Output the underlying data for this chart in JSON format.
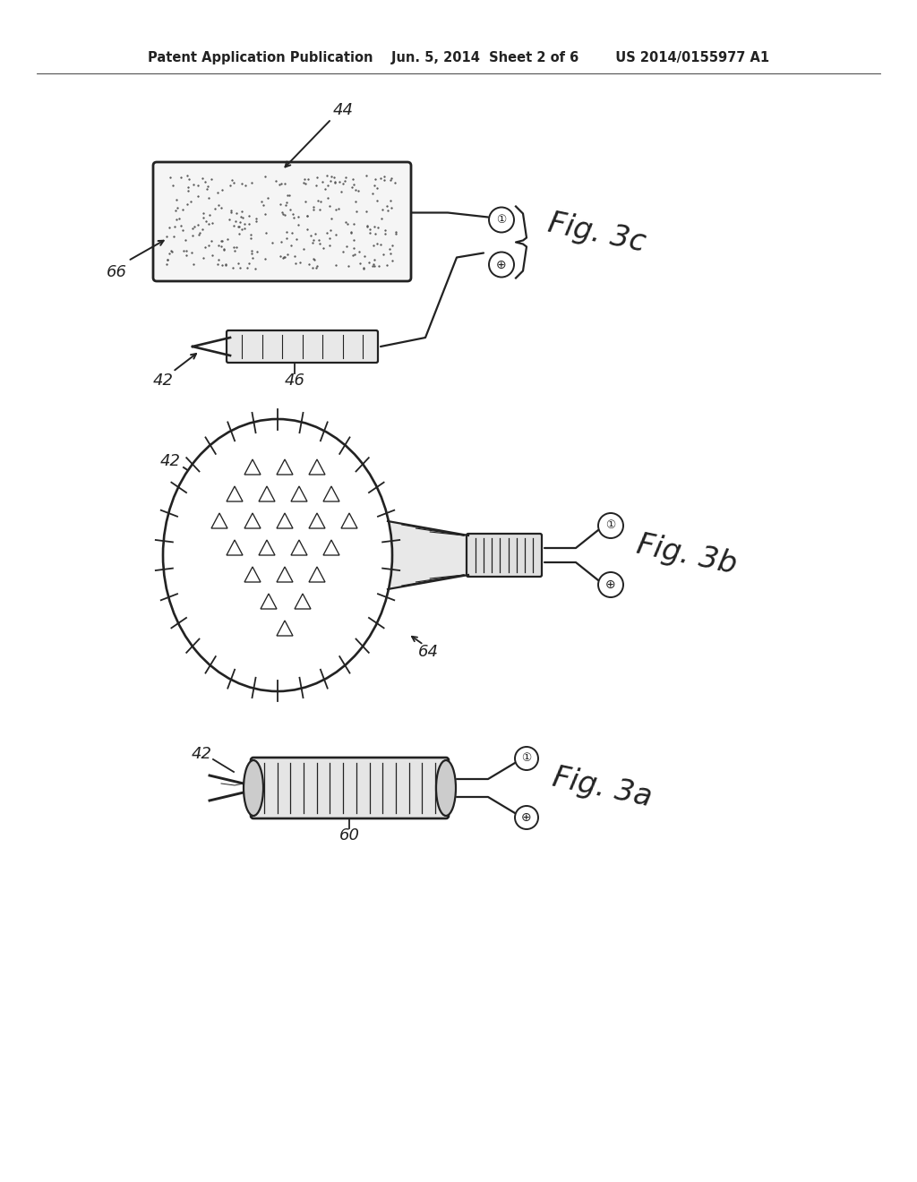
{
  "bg_color": "#ffffff",
  "header": "Patent Application Publication    Jun. 5, 2014  Sheet 2 of 6        US 2014/0155977 A1",
  "lc": "#222222",
  "lw": 1.6,
  "stipple_seed": 42,
  "stipple_count": 280,
  "fig3c_label": "Fig. 3c",
  "fig3b_label": "Fig. 3b",
  "fig3a_label": "Fig. 3a"
}
